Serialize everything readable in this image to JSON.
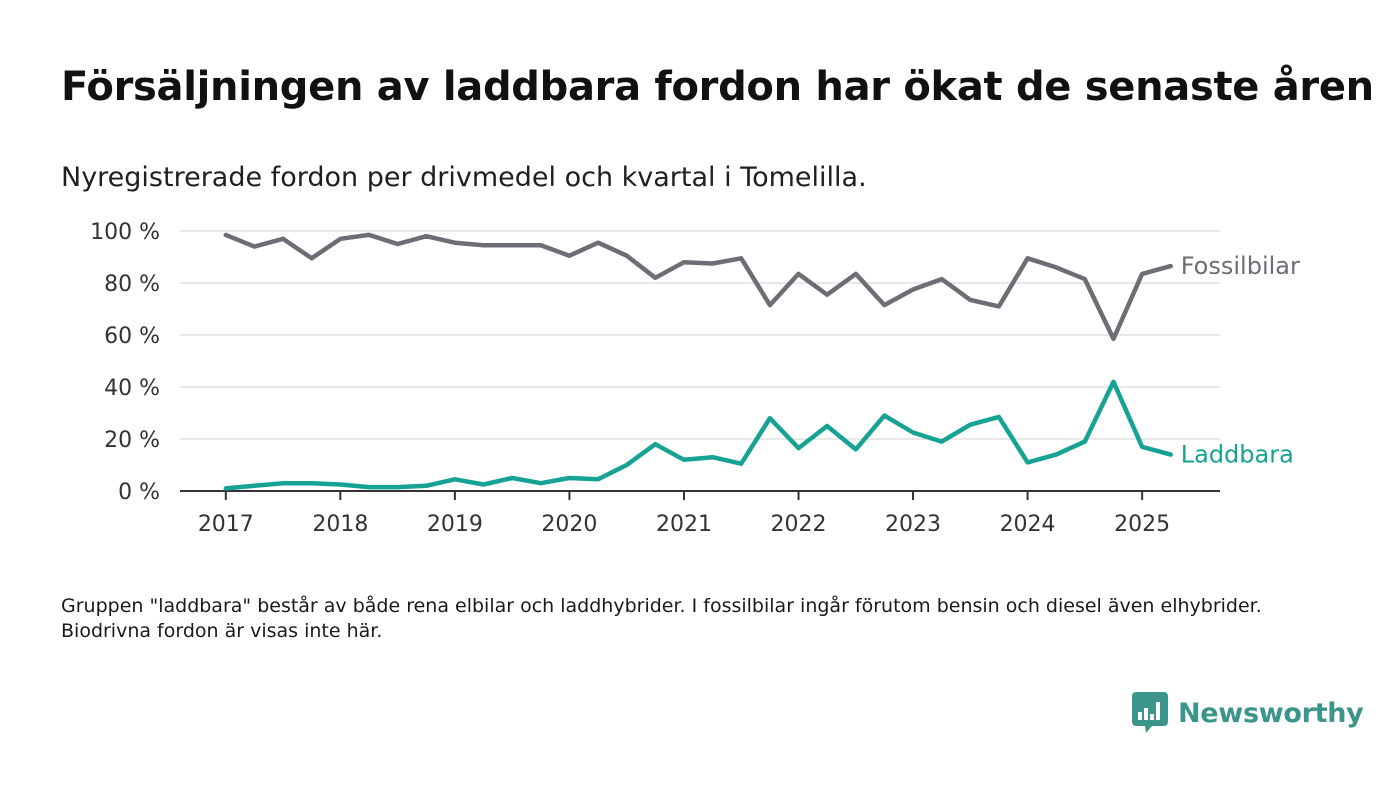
{
  "title": "Försäljningen av laddbara fordon har ökat de senaste åren",
  "subtitle": "Nyregistrerade fordon per drivmedel och kvartal i Tomelilla.",
  "note": "Gruppen \"laddbara\" består av både rena elbilar och laddhybrider. I fossilbilar ingår förutom bensin och diesel även elhybrider. Biodrivna fordon är visas inte här.",
  "brand": {
    "name": "Newsworthy",
    "icon": "chart-bubble-icon",
    "color": "#3b958a"
  },
  "chart_data": {
    "type": "line",
    "title": "Försäljningen av laddbara fordon har ökat de senaste åren",
    "subtitle": "Nyregistrerade fordon per drivmedel och kvartal i Tomelilla.",
    "xlabel": "",
    "ylabel": "",
    "ylim": [
      0,
      100
    ],
    "xlim": [
      2016.6,
      2025.68
    ],
    "y_ticks": [
      0,
      20,
      40,
      60,
      80,
      100
    ],
    "y_tick_labels": [
      "0 %",
      "20 %",
      "40 %",
      "60 %",
      "80 %",
      "100 %"
    ],
    "x_ticks": [
      2017,
      2018,
      2019,
      2020,
      2021,
      2022,
      2023,
      2024,
      2025
    ],
    "x_tick_labels": [
      "2017",
      "2018",
      "2019",
      "2020",
      "2021",
      "2022",
      "2023",
      "2024",
      "2025"
    ],
    "grid": "horizontal",
    "legend": "direct labels at line ends",
    "x": [
      "2017-Q1",
      "2017-Q2",
      "2017-Q3",
      "2017-Q4",
      "2018-Q1",
      "2018-Q2",
      "2018-Q3",
      "2018-Q4",
      "2019-Q1",
      "2019-Q2",
      "2019-Q3",
      "2019-Q4",
      "2020-Q1",
      "2020-Q2",
      "2020-Q3",
      "2020-Q4",
      "2021-Q1",
      "2021-Q2",
      "2021-Q3",
      "2021-Q4",
      "2022-Q1",
      "2022-Q2",
      "2022-Q3",
      "2022-Q4",
      "2023-Q1",
      "2023-Q2",
      "2023-Q3",
      "2023-Q4",
      "2024-Q1",
      "2024-Q2",
      "2024-Q3",
      "2024-Q4",
      "2025-Q1",
      "2025-Q2"
    ],
    "series": [
      {
        "name": "Fossilbilar",
        "color": "#6d6d75",
        "values": [
          98.5,
          94,
          97,
          89.5,
          97,
          98.5,
          95,
          98,
          95.5,
          94.5,
          94.5,
          94.5,
          90.5,
          95.5,
          90.5,
          82,
          88,
          87.5,
          89.5,
          71.5,
          83.5,
          75.5,
          83.5,
          71.5,
          77.5,
          81.5,
          73.5,
          71,
          89.5,
          86,
          81.5,
          58.5,
          83.5,
          86.5
        ]
      },
      {
        "name": "Laddbara",
        "color": "#16a394",
        "values": [
          1,
          2,
          3,
          3,
          2.5,
          1.5,
          1.5,
          2,
          4.5,
          2.5,
          5,
          3,
          5,
          4.5,
          10,
          18,
          12,
          13,
          10.5,
          28,
          16.5,
          25,
          16,
          29,
          22.5,
          19,
          25.5,
          28.5,
          11,
          14,
          19,
          42,
          17,
          14
        ]
      }
    ]
  }
}
